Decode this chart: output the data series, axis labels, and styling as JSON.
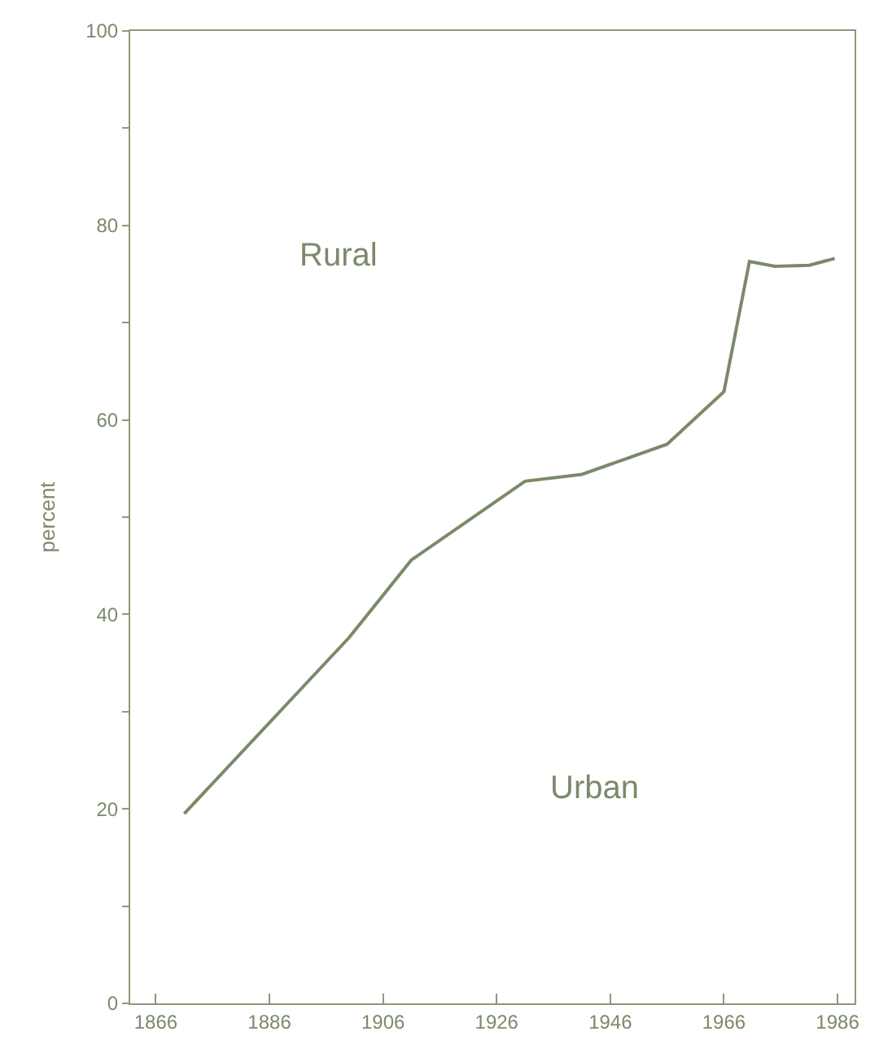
{
  "chart_data": {
    "type": "line",
    "ylabel": "percent",
    "annotations": [
      "Rural",
      "Urban"
    ],
    "x": [
      1871,
      1900,
      1911,
      1931,
      1941,
      1956,
      1966,
      1970.5,
      1975,
      1981,
      1985.5
    ],
    "series": [
      {
        "color": "#7a8a6a",
        "values": [
          19.5,
          37.6,
          45.6,
          53.7,
          54.4,
          57.5,
          62.9,
          76.3,
          75.8,
          75.9,
          76.6
        ]
      }
    ],
    "xlim": [
      1861.5,
      1989
    ],
    "ylim": [
      0,
      100
    ],
    "xticks": [
      1866,
      1886,
      1906,
      1926,
      1946,
      1966,
      1986
    ],
    "yticks": [
      0,
      {
        "value": 10,
        "label": null
      },
      20,
      {
        "value": 30,
        "label": null
      },
      40,
      {
        "value": 50,
        "label": null
      },
      60,
      {
        "value": 70,
        "label": null
      },
      80,
      {
        "value": 90,
        "label": null
      },
      100
    ],
    "marker": "none",
    "line_style": "solid"
  }
}
